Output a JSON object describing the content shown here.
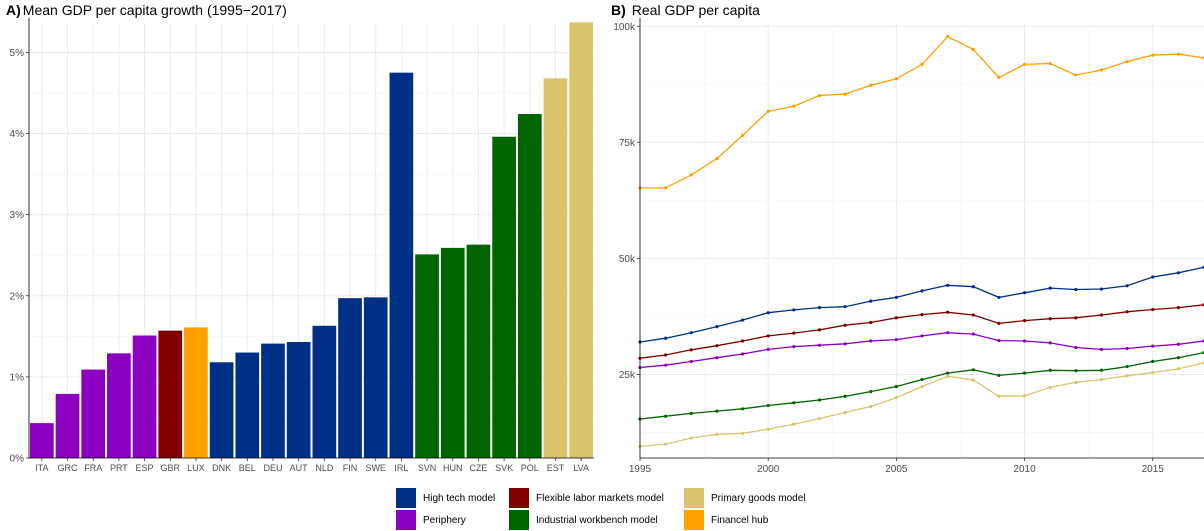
{
  "chart_data": [
    {
      "type": "bar",
      "panel_tag": "A)",
      "title": "Mean GDP per capita growth (1995−2017)",
      "categories": [
        "ITA",
        "GRC",
        "FRA",
        "PRT",
        "ESP",
        "GBR",
        "LUX",
        "DNK",
        "BEL",
        "DEU",
        "AUT",
        "NLD",
        "FIN",
        "SWE",
        "IRL",
        "SVN",
        "HUN",
        "CZE",
        "SVK",
        "POL",
        "EST",
        "LVA"
      ],
      "values": [
        0.43,
        0.79,
        1.09,
        1.29,
        1.51,
        1.57,
        1.61,
        1.18,
        1.3,
        1.41,
        1.43,
        1.63,
        1.97,
        1.98,
        4.75,
        2.51,
        2.59,
        2.63,
        3.96,
        4.24,
        4.68,
        5.37
      ],
      "groups": [
        "Periphery",
        "Periphery",
        "Periphery",
        "Periphery",
        "Periphery",
        "Flexible labor markets model",
        "Financel hub",
        "High tech model",
        "High tech model",
        "High tech model",
        "High tech model",
        "High tech model",
        "High tech model",
        "High tech model",
        "High tech model",
        "Industrial workbench model",
        "Industrial workbench model",
        "Industrial workbench model",
        "Industrial workbench model",
        "Industrial workbench model",
        "Primary goods model",
        "Primary goods model"
      ],
      "ylim": [
        0,
        5.35
      ],
      "yticks": [
        0,
        1,
        2,
        3,
        4,
        5
      ],
      "ytick_labels": [
        "0%",
        "1%",
        "2%",
        "3%",
        "4%",
        "5%"
      ],
      "xlabel": "",
      "ylabel": "",
      "grid": true
    },
    {
      "type": "line",
      "panel_tag": "B)",
      "title": "Real GDP per capita",
      "x": [
        1995,
        1996,
        1997,
        1998,
        1999,
        2000,
        2001,
        2002,
        2003,
        2004,
        2005,
        2006,
        2007,
        2008,
        2009,
        2010,
        2011,
        2012,
        2013,
        2014,
        2015,
        2016,
        2017
      ],
      "series": [
        {
          "name": "Financel hub",
          "values": [
            65200,
            65200,
            68000,
            71500,
            76500,
            81700,
            82800,
            85100,
            85400,
            87300,
            88700,
            91800,
            97800,
            95000,
            89000,
            91800,
            92000,
            89500,
            90600,
            92400,
            93800,
            94000,
            93200
          ]
        },
        {
          "name": "High tech model",
          "values": [
            32000,
            32800,
            34000,
            35300,
            36700,
            38300,
            38900,
            39400,
            39600,
            40800,
            41600,
            43000,
            44200,
            43900,
            41600,
            42600,
            43600,
            43300,
            43400,
            44100,
            46000,
            46900,
            48100
          ]
        },
        {
          "name": "Flexible labor markets model",
          "values": [
            28500,
            29200,
            30300,
            31200,
            32200,
            33300,
            33900,
            34600,
            35600,
            36200,
            37200,
            37900,
            38400,
            37800,
            36000,
            36600,
            37000,
            37200,
            37800,
            38500,
            39000,
            39400,
            40000
          ]
        },
        {
          "name": "Periphery",
          "values": [
            26500,
            27000,
            27800,
            28600,
            29400,
            30400,
            31000,
            31300,
            31600,
            32200,
            32500,
            33300,
            34000,
            33700,
            32300,
            32200,
            31800,
            30800,
            30400,
            30600,
            31100,
            31500,
            32200
          ]
        },
        {
          "name": "Industrial workbench model",
          "values": [
            15400,
            16000,
            16600,
            17100,
            17600,
            18300,
            18900,
            19500,
            20300,
            21300,
            22400,
            23900,
            25300,
            26000,
            24800,
            25300,
            25900,
            25800,
            25900,
            26700,
            27800,
            28600,
            29700
          ]
        },
        {
          "name": "Primary goods model",
          "values": [
            9500,
            10000,
            11300,
            12100,
            12300,
            13200,
            14300,
            15500,
            16800,
            18100,
            20000,
            22400,
            24600,
            23800,
            20300,
            20400,
            22200,
            23300,
            23900,
            24700,
            25400,
            26200,
            27500
          ]
        }
      ],
      "xlim": [
        1995,
        2017
      ],
      "ylim": [
        7000,
        100500
      ],
      "xticks": [
        1995,
        2000,
        2005,
        2010,
        2015
      ],
      "xtick_labels": [
        "1995",
        "2000",
        "2005",
        "2010",
        "2015"
      ],
      "yticks": [
        25000,
        50000,
        75000,
        100000
      ],
      "ytick_labels": [
        "25k",
        "50k",
        "75k",
        "100k"
      ],
      "xlabel": "",
      "ylabel": "",
      "grid": true
    }
  ],
  "legend": {
    "placement": "bottom",
    "items": [
      {
        "label": "High tech model",
        "color": "#002F87"
      },
      {
        "label": "Periphery",
        "color": "#8B00C1"
      },
      {
        "label": "Flexible labor markets model",
        "color": "#800000"
      },
      {
        "label": "Industrial workbench model",
        "color": "#006400"
      },
      {
        "label": "Primary goods model",
        "color": "#D8C56B"
      },
      {
        "label": "Financel hub",
        "color": "#FFA000"
      }
    ]
  }
}
